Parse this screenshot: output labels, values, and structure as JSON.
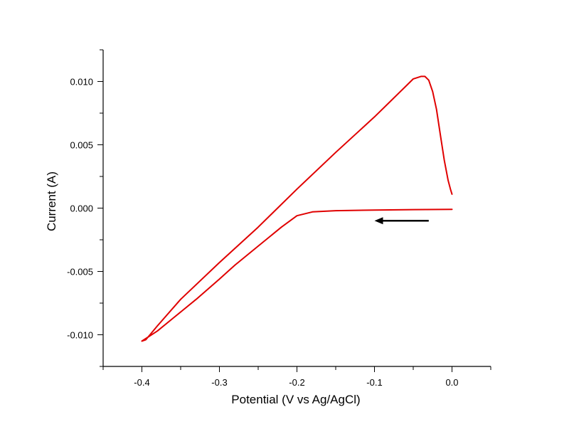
{
  "chart_data": {
    "type": "line",
    "title": "",
    "xlabel": "Potential (V vs Ag/AgCl)",
    "ylabel": "Current (A)",
    "xlim": [
      -0.45,
      0.05
    ],
    "ylim": [
      -0.0125,
      0.0125
    ],
    "x_ticks": [
      -0.4,
      -0.3,
      -0.2,
      -0.1,
      0.0
    ],
    "x_tick_labels": [
      "-0.4",
      "-0.3",
      "-0.2",
      "-0.1",
      "0.0"
    ],
    "y_ticks": [
      -0.01,
      -0.005,
      0.0,
      0.005,
      0.01
    ],
    "y_tick_labels": [
      "-0.010",
      "-0.005",
      "0.000",
      "0.005",
      "0.010"
    ],
    "grid": false,
    "series": [
      {
        "color": "#e00000",
        "points": [
          [
            0.0,
            -0.0001
          ],
          [
            -0.05,
            -0.00012
          ],
          [
            -0.1,
            -0.00015
          ],
          [
            -0.15,
            -0.0002
          ],
          [
            -0.18,
            -0.0003
          ],
          [
            -0.2,
            -0.0006
          ],
          [
            -0.22,
            -0.0015
          ],
          [
            -0.25,
            -0.003
          ],
          [
            -0.28,
            -0.0045
          ],
          [
            -0.3,
            -0.0056
          ],
          [
            -0.33,
            -0.0072
          ],
          [
            -0.36,
            -0.0087
          ],
          [
            -0.38,
            -0.0097
          ],
          [
            -0.4,
            -0.0105
          ],
          [
            -0.395,
            -0.0104
          ],
          [
            -0.38,
            -0.0093
          ],
          [
            -0.35,
            -0.0072
          ],
          [
            -0.3,
            -0.0043
          ],
          [
            -0.25,
            -0.0015
          ],
          [
            -0.2,
            0.0015
          ],
          [
            -0.15,
            0.0044
          ],
          [
            -0.1,
            0.0072
          ],
          [
            -0.08,
            0.0084
          ],
          [
            -0.06,
            0.0096
          ],
          [
            -0.05,
            0.0102
          ],
          [
            -0.04,
            0.0104
          ],
          [
            -0.035,
            0.0104
          ],
          [
            -0.03,
            0.0101
          ],
          [
            -0.025,
            0.0092
          ],
          [
            -0.02,
            0.0078
          ],
          [
            -0.015,
            0.0058
          ],
          [
            -0.01,
            0.0038
          ],
          [
            -0.005,
            0.0022
          ],
          [
            -0.002,
            0.0015
          ],
          [
            0.0,
            0.0011
          ]
        ]
      }
    ],
    "annotation_arrow": {
      "from": [
        -0.03,
        -0.001
      ],
      "to": [
        -0.1,
        -0.001
      ],
      "color": "#000000"
    }
  }
}
